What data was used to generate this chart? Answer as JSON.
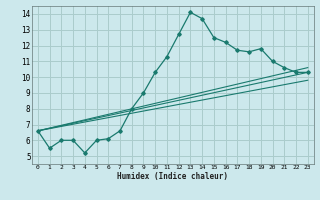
{
  "title": "",
  "xlabel": "Humidex (Indice chaleur)",
  "background_color": "#cce8ec",
  "grid_color": "#aacccc",
  "line_color": "#1a7a6e",
  "xlim": [
    -0.5,
    23.5
  ],
  "ylim": [
    4.5,
    14.5
  ],
  "xticks": [
    0,
    1,
    2,
    3,
    4,
    5,
    6,
    7,
    8,
    9,
    10,
    11,
    12,
    13,
    14,
    15,
    16,
    17,
    18,
    19,
    20,
    21,
    22,
    23
  ],
  "yticks": [
    5,
    6,
    7,
    8,
    9,
    10,
    11,
    12,
    13,
    14
  ],
  "curve1_x": [
    0,
    1,
    2,
    3,
    4,
    5,
    6,
    7,
    8,
    9,
    10,
    11,
    12,
    13,
    14,
    15,
    16,
    17,
    18,
    19,
    20,
    21,
    22,
    23
  ],
  "curve1_y": [
    6.6,
    5.5,
    6.0,
    6.0,
    5.2,
    6.0,
    6.1,
    6.6,
    8.0,
    9.0,
    10.3,
    11.3,
    12.7,
    14.1,
    13.7,
    12.5,
    12.2,
    11.7,
    11.6,
    11.8,
    11.0,
    10.6,
    10.3,
    10.3
  ],
  "line1_x": [
    0,
    23
  ],
  "line1_y": [
    6.6,
    10.3
  ],
  "line2_x": [
    0,
    23
  ],
  "line2_y": [
    6.6,
    9.8
  ],
  "line3_x": [
    0,
    23
  ],
  "line3_y": [
    6.6,
    10.6
  ]
}
